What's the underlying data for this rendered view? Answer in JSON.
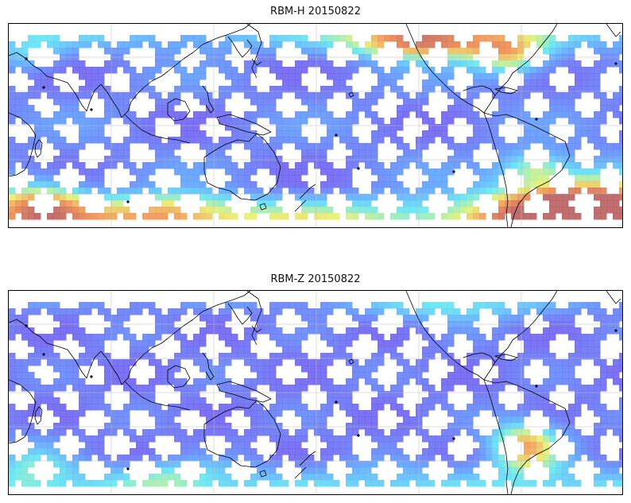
{
  "panels": [
    {
      "title": "RBM-H 20150822",
      "variable": "RBM-H",
      "date": "20150822"
    },
    {
      "title": "RBM-Z 20150822",
      "variable": "RBM-Z",
      "date": "20150822"
    }
  ],
  "colors": {
    "low": "#6a5ef0",
    "mid_low": "#5aa0ff",
    "mid": "#5fe6f0",
    "mid_high": "#e8f06a",
    "high": "#f08a4a",
    "max": "#b85a5a",
    "coast": "#000000",
    "grid": "#bbbbbb"
  },
  "colormap": "jet"
}
